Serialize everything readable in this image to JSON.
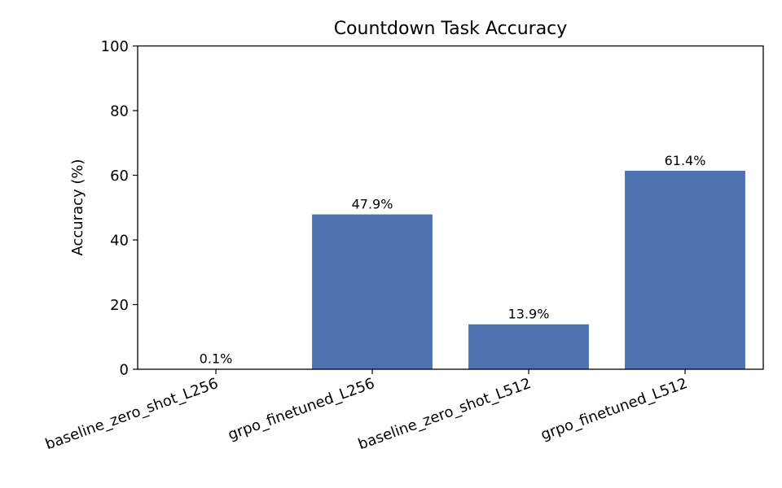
{
  "chart_data": {
    "type": "bar",
    "title": "Countdown Task Accuracy",
    "xlabel": "",
    "ylabel": "Accuracy (%)",
    "categories": [
      "baseline_zero_shot_L256",
      "grpo_finetuned_L256",
      "baseline_zero_shot_L512",
      "grpo_finetuned_L512"
    ],
    "values": [
      0.1,
      47.9,
      13.9,
      61.4
    ],
    "data_labels": [
      "0.1%",
      "47.9%",
      "13.9%",
      "61.4%"
    ],
    "ylim": [
      0,
      100
    ],
    "yticks": [
      0,
      20,
      40,
      60,
      80,
      100
    ],
    "ytick_labels": [
      "0",
      "20",
      "40",
      "60",
      "80",
      "100"
    ],
    "grid": false,
    "legend": "none",
    "bar_color": "#4c72b0"
  }
}
